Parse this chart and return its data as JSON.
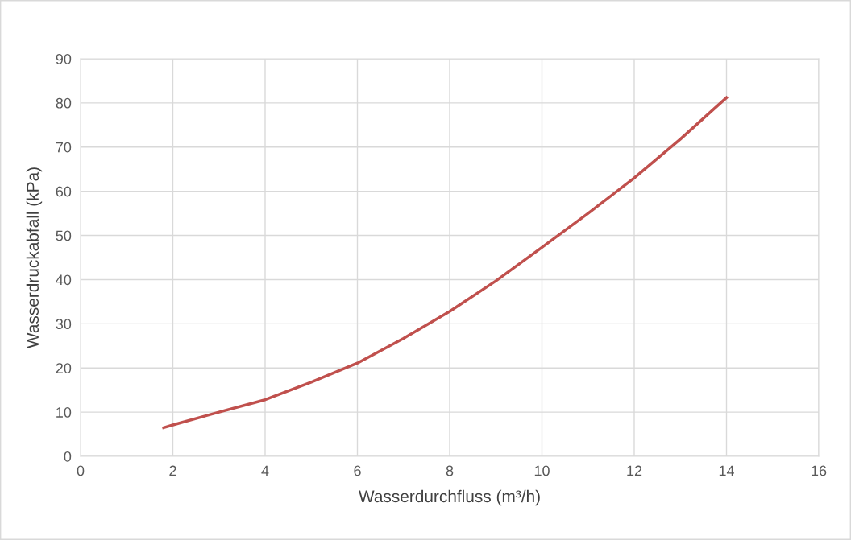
{
  "chart_data": {
    "type": "line",
    "xlabel": "Wasserdurchfluss (m³/h)",
    "ylabel": "Wasserdruckabfall (kPa)",
    "x": [
      1.8,
      2,
      3,
      4,
      5,
      6,
      7,
      8,
      9,
      10,
      11,
      12,
      13,
      14
    ],
    "series": [
      {
        "color": "#c0504d",
        "values": [
          6.5,
          7.1,
          10,
          12.8,
          16.8,
          21.1,
          26.7,
          32.8,
          39.7,
          47.3,
          55,
          63,
          71.8,
          81.2
        ]
      }
    ],
    "xlim": [
      0,
      16
    ],
    "xticks": [
      0,
      2,
      4,
      6,
      8,
      10,
      12,
      14,
      16
    ],
    "ylim": [
      0,
      90
    ],
    "yticks": [
      0,
      10,
      20,
      30,
      40,
      50,
      60,
      70,
      80,
      90
    ],
    "grid": true,
    "marker": "none",
    "line_style": "solid"
  }
}
